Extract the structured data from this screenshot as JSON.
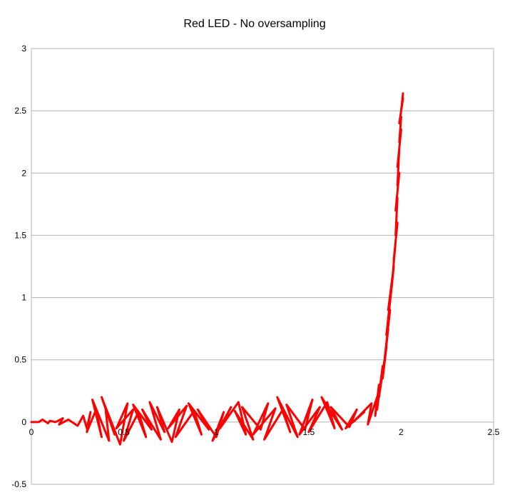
{
  "chart_data": {
    "type": "line",
    "title": "Red LED - No oversampling",
    "xlabel": "",
    "ylabel": "",
    "xlim": [
      0,
      2.5
    ],
    "ylim": [
      -0.5,
      3
    ],
    "x_ticks": [
      0,
      0.5,
      1,
      1.5,
      2,
      2.5
    ],
    "x_tick_labels": [
      "0",
      "0.5",
      "1",
      "1.5",
      "2",
      "2.5"
    ],
    "y_ticks": [
      -0.5,
      0,
      0.5,
      1,
      1.5,
      2,
      2.5,
      3
    ],
    "y_tick_labels": [
      "-0.5",
      "0",
      "0.5",
      "1",
      "1.5",
      "2",
      "2.5",
      "3"
    ],
    "grid": true,
    "legend": "none",
    "series": [
      {
        "color": "#ff0000",
        "x": [
          0.0,
          0.04,
          0.06,
          0.09,
          0.1,
          0.13,
          0.17,
          0.15,
          0.2,
          0.22,
          0.25,
          0.28,
          0.3,
          0.32,
          0.3,
          0.35,
          0.38,
          0.33,
          0.42,
          0.4,
          0.45,
          0.38,
          0.48,
          0.52,
          0.46,
          0.55,
          0.5,
          0.58,
          0.62,
          0.55,
          0.65,
          0.6,
          0.7,
          0.64,
          0.72,
          0.68,
          0.76,
          0.8,
          0.74,
          0.84,
          0.78,
          0.88,
          0.92,
          0.85,
          0.96,
          0.9,
          1.0,
          1.04,
          0.98,
          1.08,
          1.02,
          1.12,
          1.16,
          1.1,
          1.2,
          1.14,
          1.24,
          1.28,
          1.2,
          1.32,
          1.26,
          1.36,
          1.4,
          1.33,
          1.44,
          1.38,
          1.48,
          1.52,
          1.45,
          1.56,
          1.5,
          1.6,
          1.64,
          1.57,
          1.68,
          1.62,
          1.72,
          1.76,
          1.7,
          1.8,
          1.74,
          1.84,
          1.82,
          1.87,
          1.86,
          1.88,
          1.87,
          1.9,
          1.88,
          1.92,
          1.9,
          1.93,
          1.91,
          1.94,
          1.92,
          1.95,
          1.93,
          1.96,
          1.95,
          1.97,
          1.96,
          1.98,
          1.97,
          1.98,
          1.97,
          1.99,
          1.98,
          1.99,
          1.98,
          2.0,
          1.99,
          2.0,
          1.99,
          2.01,
          2.0,
          2.01
        ],
        "y": [
          0.0,
          0.0,
          0.02,
          -0.01,
          0.01,
          0.0,
          0.03,
          -0.02,
          0.02,
          0.0,
          -0.03,
          0.05,
          -0.05,
          0.08,
          -0.08,
          0.1,
          -0.12,
          0.18,
          -0.15,
          0.12,
          -0.1,
          0.2,
          -0.18,
          0.15,
          -0.05,
          0.1,
          -0.15,
          0.08,
          -0.12,
          0.14,
          -0.06,
          0.1,
          -0.14,
          0.16,
          -0.08,
          0.12,
          -0.16,
          0.1,
          -0.05,
          0.13,
          -0.12,
          0.09,
          -0.1,
          0.15,
          -0.06,
          0.1,
          -0.12,
          0.08,
          -0.15,
          0.12,
          -0.05,
          0.16,
          -0.1,
          0.09,
          -0.14,
          0.12,
          -0.06,
          0.15,
          -0.1,
          0.11,
          -0.14,
          0.1,
          -0.08,
          0.2,
          -0.12,
          0.14,
          -0.06,
          0.18,
          -0.1,
          0.12,
          -0.08,
          0.16,
          -0.05,
          0.2,
          -0.06,
          0.12,
          -0.04,
          0.1,
          -0.05,
          0.08,
          0.0,
          0.15,
          -0.02,
          0.2,
          0.05,
          0.3,
          0.1,
          0.45,
          0.2,
          0.6,
          0.35,
          0.75,
          0.5,
          0.9,
          0.7,
          1.1,
          0.9,
          1.25,
          1.1,
          1.45,
          1.3,
          1.6,
          1.5,
          1.8,
          1.7,
          2.0,
          1.9,
          2.2,
          2.05,
          2.35,
          2.25,
          2.45,
          2.4,
          2.6,
          2.5,
          2.64
        ]
      }
    ]
  }
}
